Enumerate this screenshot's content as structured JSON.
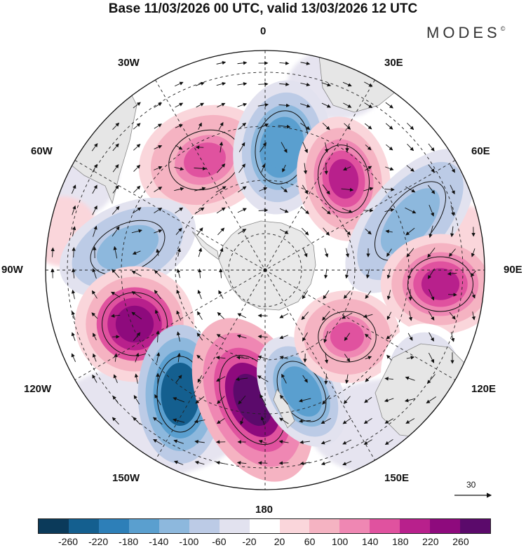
{
  "title": "Base 11/03/2026 00 UTC, valid 13/03/2026 12 UTC",
  "brand": "MODES",
  "brand_mark": "©",
  "longitude_labels": {
    "lon_0": "0",
    "lon_30e": "30E",
    "lon_60e": "60E",
    "lon_90e": "90E",
    "lon_120e": "120E",
    "lon_150e": "150E",
    "lon_180": "180",
    "lon_150w": "150W",
    "lon_120w": "120W",
    "lon_90w": "90W",
    "lon_60w": "60W",
    "lon_30w": "30W"
  },
  "wind_reference": "30",
  "colorbar": {
    "colors": [
      "#0b3a5a",
      "#145f8f",
      "#2d7fb8",
      "#5a9fcf",
      "#8db8dd",
      "#bccbe6",
      "#e2e2ef",
      "#ffffff",
      "#fad6db",
      "#f5b3c2",
      "#ef87b3",
      "#e0529f",
      "#b8208c",
      "#8e0a7d",
      "#5b0a6b"
    ],
    "ticks": [
      "-260",
      "-220",
      "-180",
      "-140",
      "-100",
      "-60",
      "-20",
      "20",
      "60",
      "100",
      "140",
      "180",
      "220",
      "260"
    ]
  },
  "anomaly_centers": [
    {
      "name": "high-60w",
      "value": 140
    },
    {
      "name": "low-10e",
      "value": -180
    },
    {
      "name": "high-45e",
      "value": 180
    },
    {
      "name": "low-75e",
      "value": -140
    },
    {
      "name": "high-95e",
      "value": 180
    },
    {
      "name": "low-85w",
      "value": -140
    },
    {
      "name": "high-110w",
      "value": 220
    },
    {
      "name": "low-150w",
      "value": -260
    },
    {
      "name": "high-170w",
      "value": 260
    },
    {
      "name": "low-165e",
      "value": -180
    },
    {
      "name": "high-130e",
      "value": 140
    },
    {
      "name": "low-120e",
      "value": -60
    }
  ]
}
